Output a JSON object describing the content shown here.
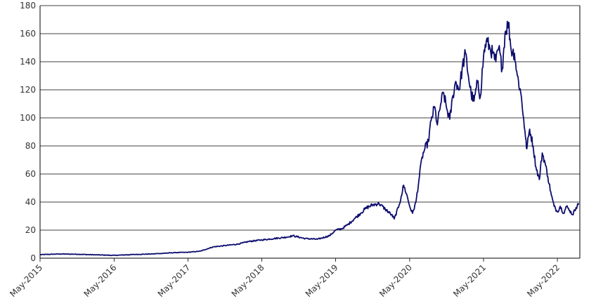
{
  "chart_data": {
    "type": "line",
    "title": "",
    "xlabel": "",
    "ylabel": "",
    "ylim": [
      0,
      180
    ],
    "yticks": [
      0,
      20,
      40,
      60,
      80,
      100,
      120,
      140,
      160,
      180
    ],
    "xlim": [
      "2015-05-01",
      "2022-08-20"
    ],
    "xticks": [
      "May-2015",
      "May-2016",
      "May-2017",
      "May-2018",
      "May-2019",
      "May-2020",
      "May-2021",
      "May-2022"
    ],
    "grid": "horizontal",
    "legend": "none",
    "line_color": "#0d0d6e",
    "series": [
      {
        "x": [
          "2015-05-01",
          "2015-08-01",
          "2015-11-01",
          "2016-02-01",
          "2016-05-01",
          "2016-08-01",
          "2016-11-01",
          "2017-01-01",
          "2017-03-01",
          "2017-05-01",
          "2017-07-01",
          "2017-09-01",
          "2017-11-01",
          "2018-01-01",
          "2018-03-01",
          "2018-05-01",
          "2018-07-01",
          "2018-09-01",
          "2018-10-01",
          "2018-12-01",
          "2019-02-01",
          "2019-04-01",
          "2019-05-01",
          "2019-06-01",
          "2019-07-01",
          "2019-08-01",
          "2019-09-01",
          "2019-10-01",
          "2019-11-01",
          "2019-12-01",
          "2020-01-01",
          "2020-02-01",
          "2020-02-15",
          "2020-03-10",
          "2020-03-20",
          "2020-04-01",
          "2020-04-15",
          "2020-05-01",
          "2020-05-15",
          "2020-06-01",
          "2020-06-15",
          "2020-07-01",
          "2020-07-15",
          "2020-08-01",
          "2020-08-15",
          "2020-09-01",
          "2020-09-15",
          "2020-10-01",
          "2020-10-15",
          "2020-11-01",
          "2020-11-15",
          "2020-12-01",
          "2020-12-15",
          "2021-01-01",
          "2021-01-15",
          "2021-02-01",
          "2021-02-15",
          "2021-03-01",
          "2021-03-15",
          "2021-04-01",
          "2021-04-15",
          "2021-05-01",
          "2021-05-15",
          "2021-06-01",
          "2021-06-15",
          "2021-07-01",
          "2021-07-15",
          "2021-08-01",
          "2021-08-15",
          "2021-09-01",
          "2021-09-15",
          "2021-10-01",
          "2021-10-15",
          "2021-11-01",
          "2021-11-15",
          "2021-11-25",
          "2021-12-01",
          "2021-12-15",
          "2022-01-01",
          "2022-01-15",
          "2022-02-01",
          "2022-02-15",
          "2022-03-01",
          "2022-03-15",
          "2022-04-01",
          "2022-04-15",
          "2022-05-01",
          "2022-05-15",
          "2022-06-01",
          "2022-06-15",
          "2022-07-01",
          "2022-07-15",
          "2022-08-01",
          "2022-08-15"
        ],
        "values": [
          2.5,
          3.0,
          2.8,
          2.4,
          2.0,
          2.6,
          3.0,
          3.5,
          4.0,
          4.2,
          5.0,
          8.0,
          9.0,
          10.0,
          12.0,
          13.0,
          14.0,
          15.0,
          16.0,
          14.0,
          13.5,
          16.0,
          20.0,
          21.0,
          24.0,
          28.0,
          32.0,
          36.0,
          38.0,
          39.0,
          35.0,
          31.0,
          28.0,
          38.0,
          44.0,
          52.0,
          46.0,
          37.0,
          32.0,
          40.0,
          55.0,
          72.0,
          78.0,
          83.0,
          98.0,
          108.0,
          95.0,
          110.0,
          118.0,
          106.0,
          99.0,
          116.0,
          126.0,
          120.0,
          135.0,
          146.0,
          130.0,
          117.0,
          112.0,
          125.0,
          115.0,
          144.0,
          155.0,
          150.0,
          146.0,
          140.0,
          150.0,
          135.0,
          160.0,
          168.0,
          148.0,
          146.0,
          130.0,
          118.0,
          100.0,
          85.0,
          78.0,
          92.0,
          80.0,
          65.0,
          56.0,
          75.0,
          68.0,
          58.0,
          45.0,
          37.0,
          33.0,
          37.0,
          32.0,
          37.0,
          34.0,
          31.0,
          36.0,
          39.0
        ]
      }
    ]
  }
}
